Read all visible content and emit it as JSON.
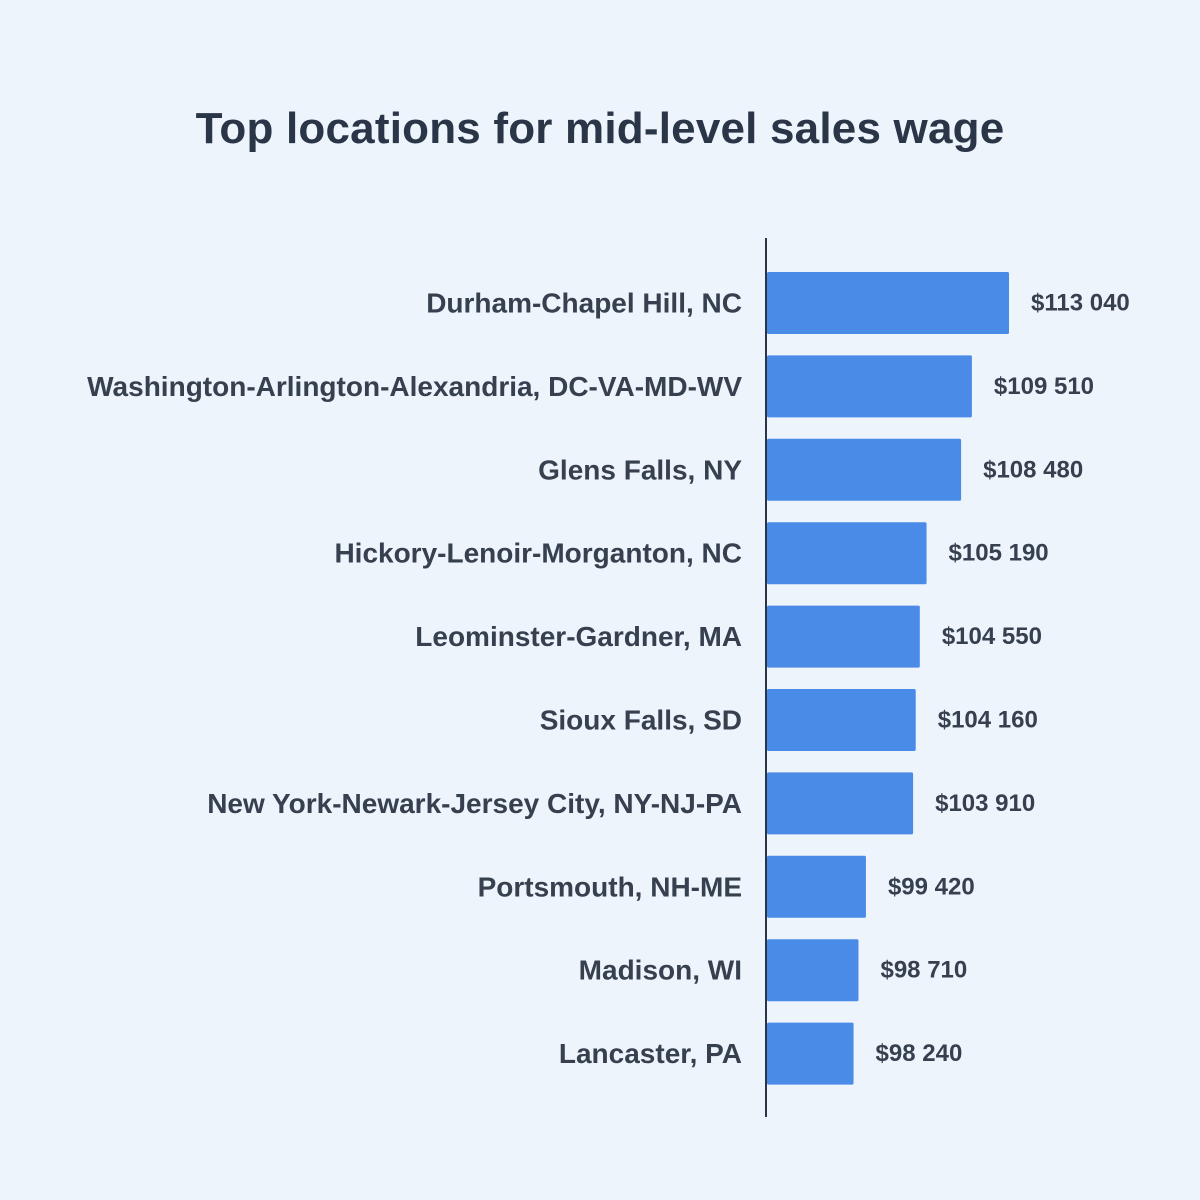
{
  "chart_data": {
    "type": "bar",
    "orientation": "horizontal",
    "title": "Top locations for mid-level sales wage",
    "xlabel": "",
    "ylabel": "",
    "categories": [
      "Durham-Chapel Hill, NC",
      "Washington-Arlington-Alexandria, DC-VA-MD-WV",
      "Glens Falls, NY",
      "Hickory-Lenoir-Morganton, NC",
      "Leominster-Gardner, MA",
      "Sioux Falls, SD",
      "New York-Newark-Jersey City, NY-NJ-PA",
      "Portsmouth, NH-ME",
      "Madison, WI",
      "Lancaster, PA"
    ],
    "values": [
      113040,
      109510,
      108480,
      105190,
      104550,
      104160,
      103910,
      99420,
      98710,
      98240
    ],
    "value_labels": [
      "$113 040",
      "$109 510",
      "$108 480",
      "$105 190",
      "$104 550",
      "$104 160",
      "$103 910",
      "$99 420",
      "$98 710",
      "$98 240"
    ],
    "xlim": [
      90000,
      113040
    ],
    "grid": false,
    "legend": "none",
    "bar_color": "#4b8be8",
    "axis_color": "#2a3647",
    "text_color": "#36404f",
    "background_color": "#eef4fc"
  }
}
